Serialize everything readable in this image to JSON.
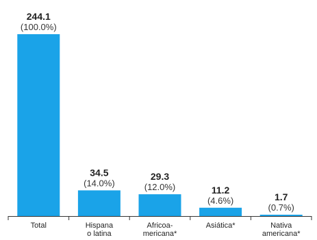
{
  "colors": {
    "bar": "#1aa3e8",
    "axis": "#333333"
  },
  "chart_data": {
    "type": "bar",
    "title": "",
    "xlabel": "",
    "ylabel": "",
    "ylim": [
      0,
      244.1
    ],
    "grid": false,
    "legend": "none",
    "categories": [
      [
        "Total"
      ],
      [
        "Hispana",
        "o latina"
      ],
      [
        "Africoa-",
        "mericana*"
      ],
      [
        "Asiática*"
      ],
      [
        "Nativa",
        "americana*"
      ]
    ],
    "values": [
      244.1,
      34.5,
      29.3,
      11.2,
      1.7
    ],
    "value_labels": [
      "244.1",
      "34.5",
      "29.3",
      "11.2",
      "1.7"
    ],
    "percent_labels": [
      "(100.0%)",
      "(14.0%)",
      "(12.0%)",
      "(4.6%)",
      "(0.7%)"
    ]
  }
}
